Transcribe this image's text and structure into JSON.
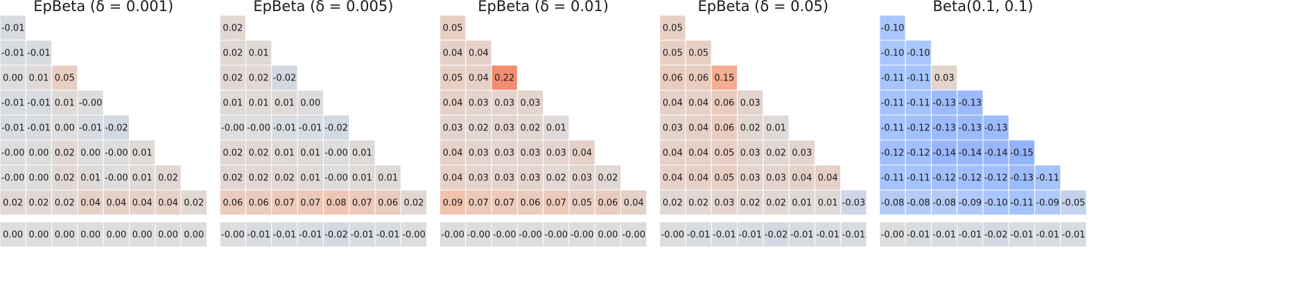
{
  "chart_data": [
    {
      "type": "heatmap",
      "title": "EpBeta (δ = 0.001)",
      "clim": [
        -0.4,
        0.4
      ],
      "colormap": [
        "#3b4cc0",
        "#5475e9",
        "#7c9ff9",
        "#aac7fd",
        "#dddddd",
        "#f3c0aa",
        "#f49a7b",
        "#de604d",
        "#b40426"
      ],
      "rows": [
        {
          "values": [
            -0.01
          ],
          "value_labels": [
            "-0.01"
          ]
        },
        {
          "values": [
            -0.01,
            -0.01
          ],
          "value_labels": [
            "-0.01",
            "-0.01"
          ]
        },
        {
          "values": [
            0,
            0.01,
            0.05
          ],
          "value_labels": [
            "0.00",
            "0.01",
            "0.05"
          ]
        },
        {
          "values": [
            -0.01,
            -0.01,
            0.01,
            0
          ],
          "value_labels": [
            "-0.01",
            "-0.01",
            "0.01",
            "-0.00"
          ]
        },
        {
          "values": [
            -0.01,
            -0.01,
            0,
            -0.01,
            -0.02
          ],
          "value_labels": [
            "-0.01",
            "-0.01",
            "0.00",
            "-0.01",
            "-0.02"
          ]
        },
        {
          "values": [
            0,
            0,
            0.02,
            0,
            0,
            0.01
          ],
          "value_labels": [
            "-0.00",
            "0.00",
            "0.02",
            "0.00",
            "-0.00",
            "0.01"
          ]
        },
        {
          "values": [
            0,
            0,
            0.02,
            0.01,
            0,
            0.01,
            0.02
          ],
          "value_labels": [
            "-0.00",
            "0.00",
            "0.02",
            "0.01",
            "-0.00",
            "0.01",
            "0.02"
          ]
        },
        {
          "values": [
            0.02,
            0.02,
            0.02,
            0.04,
            0.04,
            0.04,
            0.04,
            0.02
          ],
          "value_labels": [
            "0.02",
            "0.02",
            "0.02",
            "0.04",
            "0.04",
            "0.04",
            "0.04",
            "0.02"
          ]
        }
      ],
      "bottom_row": {
        "values": [
          0,
          0,
          0,
          0,
          0,
          0,
          0,
          0
        ],
        "value_labels": [
          "0.00",
          "0.00",
          "0.00",
          "0.00",
          "0.00",
          "0.00",
          "0.00",
          "0.00"
        ]
      }
    },
    {
      "type": "heatmap",
      "title": "EpBeta (δ = 0.005)",
      "clim": [
        -0.4,
        0.4
      ],
      "colormap": [
        "#3b4cc0",
        "#5475e9",
        "#7c9ff9",
        "#aac7fd",
        "#dddddd",
        "#f3c0aa",
        "#f49a7b",
        "#de604d",
        "#b40426"
      ],
      "rows": [
        {
          "values": [
            0.02
          ],
          "value_labels": [
            "0.02"
          ]
        },
        {
          "values": [
            0.02,
            0.01
          ],
          "value_labels": [
            "0.02",
            "0.01"
          ]
        },
        {
          "values": [
            0.02,
            0.02,
            -0.02
          ],
          "value_labels": [
            "0.02",
            "0.02",
            "-0.02"
          ]
        },
        {
          "values": [
            0.01,
            0.01,
            0.01,
            0
          ],
          "value_labels": [
            "0.01",
            "0.01",
            "0.01",
            "0.00"
          ]
        },
        {
          "values": [
            0,
            0,
            -0.01,
            -0.01,
            -0.02
          ],
          "value_labels": [
            "-0.00",
            "-0.00",
            "-0.01",
            "-0.01",
            "-0.02"
          ]
        },
        {
          "values": [
            0.02,
            0.02,
            0.01,
            0.01,
            0,
            0.01
          ],
          "value_labels": [
            "0.02",
            "0.02",
            "0.01",
            "0.01",
            "-0.00",
            "0.01"
          ]
        },
        {
          "values": [
            0.02,
            0.02,
            0.02,
            0.01,
            0,
            0.01,
            0.01
          ],
          "value_labels": [
            "0.02",
            "0.02",
            "0.02",
            "0.01",
            "-0.00",
            "0.01",
            "0.01"
          ]
        },
        {
          "values": [
            0.06,
            0.06,
            0.07,
            0.07,
            0.08,
            0.07,
            0.06,
            0.02
          ],
          "value_labels": [
            "0.06",
            "0.06",
            "0.07",
            "0.07",
            "0.08",
            "0.07",
            "0.06",
            "0.02"
          ]
        }
      ],
      "bottom_row": {
        "values": [
          0,
          -0.01,
          -0.01,
          -0.01,
          -0.02,
          -0.01,
          -0.01,
          0
        ],
        "value_labels": [
          "-0.00",
          "-0.01",
          "-0.01",
          "-0.01",
          "-0.02",
          "-0.01",
          "-0.01",
          "-0.00"
        ]
      }
    },
    {
      "type": "heatmap",
      "title": "EpBeta (δ = 0.01)",
      "clim": [
        -0.4,
        0.4
      ],
      "colormap": [
        "#3b4cc0",
        "#5475e9",
        "#7c9ff9",
        "#aac7fd",
        "#dddddd",
        "#f3c0aa",
        "#f49a7b",
        "#de604d",
        "#b40426"
      ],
      "rows": [
        {
          "values": [
            0.05
          ],
          "value_labels": [
            "0.05"
          ]
        },
        {
          "values": [
            0.04,
            0.04
          ],
          "value_labels": [
            "0.04",
            "0.04"
          ]
        },
        {
          "values": [
            0.05,
            0.04,
            0.22
          ],
          "value_labels": [
            "0.05",
            "0.04",
            "0.22"
          ]
        },
        {
          "values": [
            0.04,
            0.03,
            0.03,
            0.03
          ],
          "value_labels": [
            "0.04",
            "0.03",
            "0.03",
            "0.03"
          ]
        },
        {
          "values": [
            0.03,
            0.02,
            0.03,
            0.02,
            0.01
          ],
          "value_labels": [
            "0.03",
            "0.02",
            "0.03",
            "0.02",
            "0.01"
          ]
        },
        {
          "values": [
            0.04,
            0.03,
            0.03,
            0.03,
            0.03,
            0.04
          ],
          "value_labels": [
            "0.04",
            "0.03",
            "0.03",
            "0.03",
            "0.03",
            "0.04"
          ]
        },
        {
          "values": [
            0.04,
            0.03,
            0.03,
            0.03,
            0.02,
            0.03,
            0.02
          ],
          "value_labels": [
            "0.04",
            "0.03",
            "0.03",
            "0.03",
            "0.02",
            "0.03",
            "0.02"
          ]
        },
        {
          "values": [
            0.09,
            0.07,
            0.07,
            0.06,
            0.07,
            0.05,
            0.06,
            0.04
          ],
          "value_labels": [
            "0.09",
            "0.07",
            "0.07",
            "0.06",
            "0.07",
            "0.05",
            "0.06",
            "0.04"
          ]
        }
      ],
      "bottom_row": {
        "values": [
          0,
          0,
          0,
          0,
          0,
          0,
          0,
          0
        ],
        "value_labels": [
          "-0.00",
          "-0.00",
          "-0.00",
          "-0.00",
          "-0.00",
          "-0.00",
          "0.00",
          "-0.00"
        ]
      }
    },
    {
      "type": "heatmap",
      "title": "EpBeta (δ = 0.05)",
      "clim": [
        -0.4,
        0.4
      ],
      "colormap": [
        "#3b4cc0",
        "#5475e9",
        "#7c9ff9",
        "#aac7fd",
        "#dddddd",
        "#f3c0aa",
        "#f49a7b",
        "#de604d",
        "#b40426"
      ],
      "rows": [
        {
          "values": [
            0.05
          ],
          "value_labels": [
            "0.05"
          ]
        },
        {
          "values": [
            0.05,
            0.05
          ],
          "value_labels": [
            "0.05",
            "0.05"
          ]
        },
        {
          "values": [
            0.06,
            0.06,
            0.15
          ],
          "value_labels": [
            "0.06",
            "0.06",
            "0.15"
          ]
        },
        {
          "values": [
            0.04,
            0.04,
            0.06,
            0.03
          ],
          "value_labels": [
            "0.04",
            "0.04",
            "0.06",
            "0.03"
          ]
        },
        {
          "values": [
            0.03,
            0.04,
            0.06,
            0.02,
            0.01
          ],
          "value_labels": [
            "0.03",
            "0.04",
            "0.06",
            "0.02",
            "0.01"
          ]
        },
        {
          "values": [
            0.04,
            0.04,
            0.05,
            0.03,
            0.02,
            0.03
          ],
          "value_labels": [
            "0.04",
            "0.04",
            "0.05",
            "0.03",
            "0.02",
            "0.03"
          ]
        },
        {
          "values": [
            0.04,
            0.04,
            0.05,
            0.03,
            0.03,
            0.04,
            0.04
          ],
          "value_labels": [
            "0.04",
            "0.04",
            "0.05",
            "0.03",
            "0.03",
            "0.04",
            "0.04"
          ]
        },
        {
          "values": [
            0.02,
            0.02,
            0.03,
            0.02,
            0.02,
            0.01,
            0.01,
            -0.03
          ],
          "value_labels": [
            "0.02",
            "0.02",
            "0.03",
            "0.02",
            "0.02",
            "0.01",
            "0.01",
            "-0.03"
          ]
        }
      ],
      "bottom_row": {
        "values": [
          0,
          -0.01,
          -0.01,
          -0.01,
          -0.02,
          -0.01,
          -0.01,
          -0.01
        ],
        "value_labels": [
          "-0.00",
          "-0.01",
          "-0.01",
          "-0.01",
          "-0.02",
          "-0.01",
          "-0.01",
          "-0.01"
        ]
      }
    },
    {
      "type": "heatmap",
      "title": "Beta(0.1, 0.1)",
      "clim": [
        -0.4,
        0.4
      ],
      "colormap": [
        "#3b4cc0",
        "#5475e9",
        "#7c9ff9",
        "#aac7fd",
        "#dddddd",
        "#f3c0aa",
        "#f49a7b",
        "#de604d",
        "#b40426"
      ],
      "rows": [
        {
          "values": [
            -0.1
          ],
          "value_labels": [
            "-0.10"
          ]
        },
        {
          "values": [
            -0.1,
            -0.1
          ],
          "value_labels": [
            "-0.10",
            "-0.10"
          ]
        },
        {
          "values": [
            -0.11,
            -0.11,
            0.03
          ],
          "value_labels": [
            "-0.11",
            "-0.11",
            "0.03"
          ]
        },
        {
          "values": [
            -0.11,
            -0.11,
            -0.13,
            -0.13
          ],
          "value_labels": [
            "-0.11",
            "-0.11",
            "-0.13",
            "-0.13"
          ]
        },
        {
          "values": [
            -0.11,
            -0.12,
            -0.13,
            -0.13,
            -0.13
          ],
          "value_labels": [
            "-0.11",
            "-0.12",
            "-0.13",
            "-0.13",
            "-0.13"
          ]
        },
        {
          "values": [
            -0.12,
            -0.12,
            -0.14,
            -0.14,
            -0.14,
            -0.15
          ],
          "value_labels": [
            "-0.12",
            "-0.12",
            "-0.14",
            "-0.14",
            "-0.14",
            "-0.15"
          ]
        },
        {
          "values": [
            -0.11,
            -0.11,
            -0.12,
            -0.12,
            -0.12,
            -0.13,
            -0.11
          ],
          "value_labels": [
            "-0.11",
            "-0.11",
            "-0.12",
            "-0.12",
            "-0.12",
            "-0.13",
            "-0.11"
          ]
        },
        {
          "values": [
            -0.08,
            -0.08,
            -0.08,
            -0.09,
            -0.1,
            -0.11,
            -0.09,
            -0.05
          ],
          "value_labels": [
            "-0.08",
            "-0.08",
            "-0.08",
            "-0.09",
            "-0.10",
            "-0.11",
            "-0.09",
            "-0.05"
          ]
        }
      ],
      "bottom_row": {
        "values": [
          0,
          -0.01,
          -0.01,
          -0.01,
          -0.02,
          -0.01,
          -0.01,
          -0.01
        ],
        "value_labels": [
          "-0.00",
          "-0.01",
          "-0.01",
          "-0.01",
          "-0.02",
          "-0.01",
          "-0.01",
          "-0.01"
        ]
      }
    }
  ]
}
